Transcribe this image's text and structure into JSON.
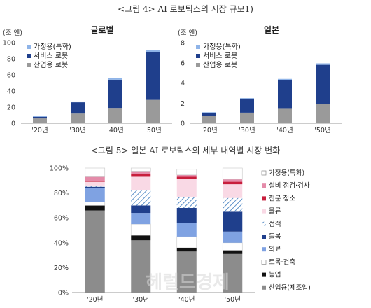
{
  "figure4_caption": "<그림 4> AI 로보틱스의 시장 규모1)",
  "figure5_caption": "<그림 5> 일본 AI 로보틱스의 세부 내역별 시장 변화",
  "watermark": "헤럴드경제",
  "colors": {
    "household": "#8FB4E8",
    "service": "#1F3F8C",
    "industrial": "#9A9A9A"
  },
  "chart_data": [
    {
      "type": "bar",
      "stacked": true,
      "title": "글로벌",
      "ylabel": "(조 엔)",
      "categories": [
        "'20년",
        "'30년",
        "'40년",
        "'50년"
      ],
      "ylim": [
        0,
        100
      ],
      "yticks": [
        "0",
        "20",
        "40",
        "60",
        "80",
        "100"
      ],
      "legend_position": "top-left",
      "series": [
        {
          "name": "가정용(특화)",
          "values": [
            1,
            1,
            2,
            3
          ]
        },
        {
          "name": "서비스 로봇",
          "values": [
            2,
            14,
            35,
            59
          ]
        },
        {
          "name": "산업용 로봇",
          "values": [
            6,
            12,
            19,
            29
          ]
        }
      ]
    },
    {
      "type": "bar",
      "stacked": true,
      "title": "일본",
      "ylabel": "(조 엔)",
      "categories": [
        "'20년",
        "'30년",
        "'40년",
        "'50년"
      ],
      "ylim": [
        0,
        8
      ],
      "yticks": [
        "0",
        "2",
        "4",
        "6",
        "8"
      ],
      "legend_position": "top-left",
      "series": [
        {
          "name": "가정용(특화)",
          "values": [
            0.05,
            0.05,
            0.1,
            0.15
          ]
        },
        {
          "name": "서비스 로봇",
          "values": [
            0.35,
            1.4,
            2.8,
            3.9
          ]
        },
        {
          "name": "산업용 로봇",
          "values": [
            0.7,
            1.05,
            1.5,
            1.9
          ]
        }
      ]
    },
    {
      "type": "bar",
      "stacked": true,
      "percent": true,
      "categories": [
        "'20년",
        "'30년",
        "'40년",
        "'50년"
      ],
      "ylim": [
        0,
        100
      ],
      "yticks": [
        "0%",
        "20%",
        "40%",
        "60%",
        "80%",
        "100%"
      ],
      "legend_position": "right",
      "series": [
        {
          "name": "산업용(제조업)",
          "color": "#8C8C8C",
          "pattern": "solid",
          "values": [
            66,
            42,
            33,
            31
          ]
        },
        {
          "name": "농업",
          "color": "#111111",
          "pattern": "solid",
          "values": [
            4,
            4,
            3,
            3
          ]
        },
        {
          "name": "토목·건축",
          "color": "#FFFFFF",
          "pattern": "solid",
          "values": [
            3,
            9,
            9,
            6
          ]
        },
        {
          "name": "의료",
          "color": "#7FA2E2",
          "pattern": "solid",
          "values": [
            11,
            9,
            11,
            9
          ]
        },
        {
          "name": "돌봄",
          "color": "#1F3F8C",
          "pattern": "solid",
          "values": [
            1,
            6,
            12,
            16
          ]
        },
        {
          "name": "접객",
          "color": "#CFE0F4",
          "pattern": "hatch",
          "values": [
            1,
            12,
            9,
            11
          ]
        },
        {
          "name": "물류",
          "color": "#F9D9E5",
          "pattern": "solid",
          "values": [
            3,
            11,
            14,
            11
          ]
        },
        {
          "name": "전문 청소",
          "color": "#C81E3C",
          "pattern": "solid",
          "values": [
            0.5,
            2.5,
            2,
            2
          ]
        },
        {
          "name": "설비 점검·검사",
          "color": "#E48BA9",
          "pattern": "solid",
          "values": [
            3.5,
            2,
            1.5,
            2
          ]
        },
        {
          "name": "가정용(특화)",
          "color": "#FFFFFF",
          "pattern": "solid",
          "values": [
            7,
            2.5,
            4.5,
            9
          ]
        }
      ]
    }
  ]
}
